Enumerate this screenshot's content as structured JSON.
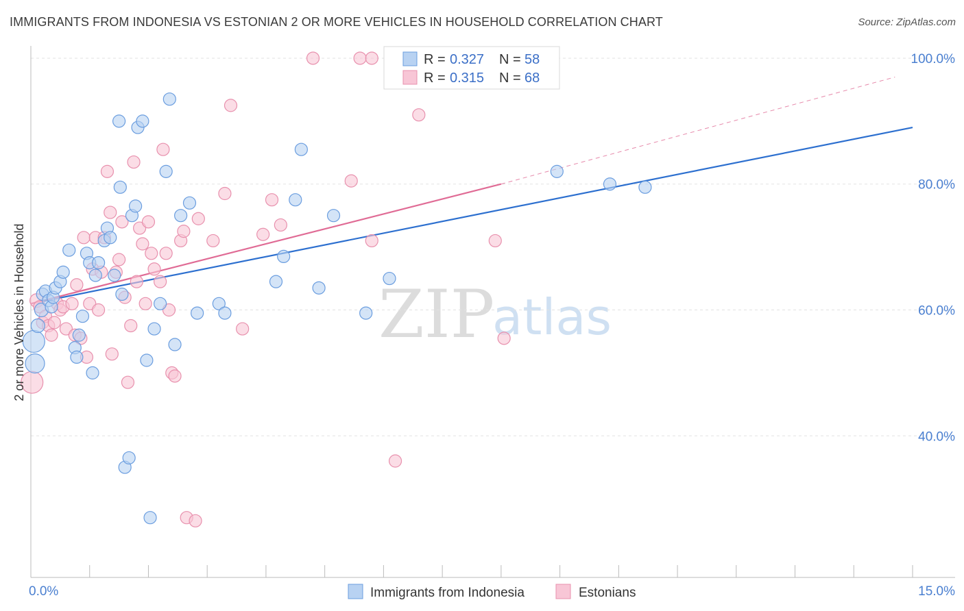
{
  "header": {
    "title": "IMMIGRANTS FROM INDONESIA VS ESTONIAN 2 OR MORE VEHICLES IN HOUSEHOLD CORRELATION CHART",
    "source": "Source: ZipAtlas.com"
  },
  "watermark": {
    "zip": "ZIP",
    "atlas": "atlas"
  },
  "legend": {
    "rows": [
      {
        "r_label": "R =",
        "r_value": "0.327",
        "n_label": "N =",
        "n_value": "58"
      },
      {
        "r_label": "R =",
        "r_value": "0.315",
        "n_label": "N =",
        "n_value": "68"
      }
    ]
  },
  "bottom_legend": {
    "series1": "Immigrants from Indonesia",
    "series2": "Estonians"
  },
  "colors": {
    "blue_fill": "#b8d2f2",
    "blue_stroke": "#6a9ddf",
    "blue_line": "#2c6fcf",
    "pink_fill": "#f8c6d6",
    "pink_stroke": "#e890ad",
    "pink_line": "#e06b95",
    "grid": "#e2e2e2",
    "axis": "#bbbbbb",
    "tick_text": "#4a7fd0"
  },
  "chart_data": {
    "type": "scatter",
    "title": "IMMIGRANTS FROM INDONESIA VS ESTONIAN 2 OR MORE VEHICLES IN HOUSEHOLD CORRELATION CHART",
    "xlabel": "",
    "ylabel": "2 or more Vehicles in Household",
    "xlim": [
      0,
      15
    ],
    "ylim": [
      17.5,
      102.5
    ],
    "x_tick_labels": [
      {
        "value": 0,
        "label": "0.0%"
      },
      {
        "value": 15,
        "label": "15.0%"
      }
    ],
    "y_tick_labels": [
      {
        "value": 40,
        "label": "40.0%"
      },
      {
        "value": 60,
        "label": "60.0%"
      },
      {
        "value": 80,
        "label": "80.0%"
      },
      {
        "value": 100,
        "label": "100.0%"
      }
    ],
    "series": [
      {
        "name": "Immigrants from Indonesia",
        "r": 0.327,
        "n": 58,
        "trend": {
          "x0": 0.0,
          "y0": 61.0,
          "x1": 15.0,
          "y1": 89.0
        },
        "points": [
          [
            0.05,
            55.0,
            16
          ],
          [
            0.07,
            51.5,
            14
          ],
          [
            0.12,
            57.5,
            10
          ],
          [
            0.18,
            60.0,
            10
          ],
          [
            0.2,
            62.5,
            9
          ],
          [
            0.25,
            63.0,
            9
          ],
          [
            0.3,
            61.5,
            9
          ],
          [
            0.35,
            60.5,
            9
          ],
          [
            0.38,
            62.0,
            9
          ],
          [
            0.42,
            63.5,
            9
          ],
          [
            0.5,
            64.5,
            9
          ],
          [
            0.55,
            66.0,
            9
          ],
          [
            0.65,
            69.5,
            9
          ],
          [
            0.75,
            54.0,
            9
          ],
          [
            0.78,
            52.5,
            9
          ],
          [
            0.82,
            56.0,
            9
          ],
          [
            0.88,
            59.0,
            9
          ],
          [
            0.95,
            69.0,
            9
          ],
          [
            1.0,
            67.5,
            9
          ],
          [
            1.05,
            50.0,
            9
          ],
          [
            1.1,
            65.5,
            9
          ],
          [
            1.15,
            67.5,
            9
          ],
          [
            1.25,
            71.0,
            9
          ],
          [
            1.3,
            73.0,
            9
          ],
          [
            1.35,
            71.5,
            9
          ],
          [
            1.42,
            65.5,
            9
          ],
          [
            1.5,
            90.0,
            9
          ],
          [
            1.52,
            79.5,
            9
          ],
          [
            1.55,
            62.5,
            9
          ],
          [
            1.6,
            35.0,
            9
          ],
          [
            1.67,
            36.5,
            9
          ],
          [
            1.72,
            75.0,
            9
          ],
          [
            1.78,
            76.5,
            9
          ],
          [
            1.82,
            89.0,
            9
          ],
          [
            1.9,
            90.0,
            9
          ],
          [
            1.97,
            52.0,
            9
          ],
          [
            2.03,
            27.0,
            9
          ],
          [
            2.1,
            57.0,
            9
          ],
          [
            2.2,
            61.0,
            9
          ],
          [
            2.3,
            82.0,
            9
          ],
          [
            2.36,
            93.5,
            9
          ],
          [
            2.45,
            54.5,
            9
          ],
          [
            2.55,
            75.0,
            9
          ],
          [
            2.7,
            77.0,
            9
          ],
          [
            2.83,
            59.5,
            9
          ],
          [
            3.2,
            61.0,
            9
          ],
          [
            3.3,
            59.5,
            9
          ],
          [
            4.17,
            64.5,
            9
          ],
          [
            4.3,
            68.5,
            9
          ],
          [
            4.5,
            77.5,
            9
          ],
          [
            4.6,
            85.5,
            9
          ],
          [
            4.9,
            63.5,
            9
          ],
          [
            5.15,
            75.0,
            9
          ],
          [
            5.7,
            59.5,
            9
          ],
          [
            6.1,
            65.0,
            9
          ],
          [
            8.95,
            82.0,
            9
          ],
          [
            9.85,
            80.0,
            9
          ],
          [
            10.45,
            79.5,
            9
          ]
        ]
      },
      {
        "name": "Estonians",
        "r": 0.315,
        "n": 68,
        "trend": {
          "x0": 0.0,
          "y0": 61.0,
          "x1": 8.0,
          "y1": 80.0
        },
        "trend_extension": {
          "x0": 8.0,
          "y0": 80.0,
          "x1": 14.7,
          "y1": 97.0
        },
        "points": [
          [
            0.02,
            48.5,
            16
          ],
          [
            0.1,
            61.5,
            10
          ],
          [
            0.15,
            60.5,
            9
          ],
          [
            0.2,
            58.0,
            9
          ],
          [
            0.25,
            59.0,
            9
          ],
          [
            0.3,
            57.5,
            9
          ],
          [
            0.35,
            56.0,
            9
          ],
          [
            0.4,
            58.0,
            9
          ],
          [
            0.45,
            61.0,
            9
          ],
          [
            0.5,
            60.0,
            9
          ],
          [
            0.55,
            60.5,
            9
          ],
          [
            0.6,
            57.0,
            9
          ],
          [
            0.7,
            61.0,
            9
          ],
          [
            0.75,
            56.0,
            9
          ],
          [
            0.78,
            64.0,
            9
          ],
          [
            0.85,
            55.5,
            9
          ],
          [
            0.9,
            71.5,
            9
          ],
          [
            0.95,
            52.5,
            9
          ],
          [
            1.0,
            61.0,
            9
          ],
          [
            1.05,
            66.5,
            9
          ],
          [
            1.1,
            71.5,
            9
          ],
          [
            1.15,
            60.0,
            9
          ],
          [
            1.2,
            66.0,
            9
          ],
          [
            1.25,
            71.5,
            9
          ],
          [
            1.3,
            82.0,
            9
          ],
          [
            1.35,
            75.5,
            9
          ],
          [
            1.38,
            53.0,
            9
          ],
          [
            1.45,
            66.0,
            9
          ],
          [
            1.5,
            68.0,
            9
          ],
          [
            1.55,
            74.0,
            9
          ],
          [
            1.6,
            62.0,
            9
          ],
          [
            1.65,
            48.5,
            9
          ],
          [
            1.7,
            57.5,
            9
          ],
          [
            1.75,
            83.5,
            9
          ],
          [
            1.8,
            64.5,
            9
          ],
          [
            1.85,
            73.0,
            9
          ],
          [
            1.9,
            70.5,
            9
          ],
          [
            1.95,
            61.0,
            9
          ],
          [
            2.0,
            74.0,
            9
          ],
          [
            2.05,
            69.0,
            9
          ],
          [
            2.1,
            66.5,
            9
          ],
          [
            2.2,
            64.5,
            9
          ],
          [
            2.25,
            85.5,
            9
          ],
          [
            2.3,
            69.0,
            9
          ],
          [
            2.35,
            60.0,
            9
          ],
          [
            2.4,
            50.0,
            9
          ],
          [
            2.45,
            49.5,
            9
          ],
          [
            2.55,
            71.0,
            9
          ],
          [
            2.6,
            72.5,
            9
          ],
          [
            2.65,
            27.0,
            9
          ],
          [
            2.8,
            26.5,
            9
          ],
          [
            2.85,
            74.5,
            9
          ],
          [
            3.1,
            71.0,
            9
          ],
          [
            3.3,
            78.5,
            9
          ],
          [
            3.4,
            92.5,
            9
          ],
          [
            3.6,
            57.0,
            9
          ],
          [
            3.95,
            72.0,
            9
          ],
          [
            4.1,
            77.5,
            9
          ],
          [
            4.25,
            73.5,
            9
          ],
          [
            4.8,
            100.0,
            9
          ],
          [
            5.45,
            80.5,
            9
          ],
          [
            5.6,
            100.0,
            9
          ],
          [
            5.8,
            71.0,
            9
          ],
          [
            5.8,
            100.0,
            9
          ],
          [
            6.2,
            36.0,
            9
          ],
          [
            6.6,
            91.0,
            9
          ],
          [
            7.9,
            71.0,
            9
          ],
          [
            8.05,
            55.5,
            9
          ]
        ]
      }
    ]
  }
}
